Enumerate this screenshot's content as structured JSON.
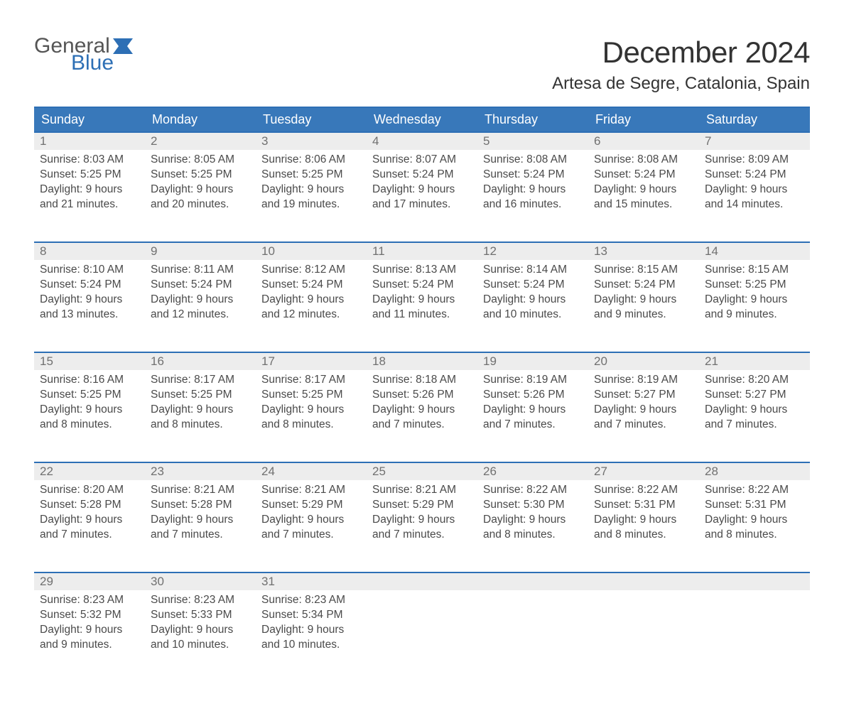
{
  "brand": {
    "word1": "General",
    "word2": "Blue",
    "text_color_general": "#555555",
    "text_color_blue": "#2d6fb5",
    "flag_color": "#2d6fb5"
  },
  "header": {
    "month_title": "December 2024",
    "location": "Artesa de Segre, Catalonia, Spain"
  },
  "colors": {
    "header_bg": "#3878ba",
    "header_border": "#2d6fb5",
    "daynum_bg": "#ededed",
    "daynum_text": "#707070",
    "body_text": "#4a4a4a",
    "page_bg": "#ffffff"
  },
  "weekdays": [
    "Sunday",
    "Monday",
    "Tuesday",
    "Wednesday",
    "Thursday",
    "Friday",
    "Saturday"
  ],
  "weeks": [
    [
      {
        "n": "1",
        "sr": "8:03 AM",
        "ss": "5:25 PM",
        "dl1": "Daylight: 9 hours",
        "dl2": "and 21 minutes."
      },
      {
        "n": "2",
        "sr": "8:05 AM",
        "ss": "5:25 PM",
        "dl1": "Daylight: 9 hours",
        "dl2": "and 20 minutes."
      },
      {
        "n": "3",
        "sr": "8:06 AM",
        "ss": "5:25 PM",
        "dl1": "Daylight: 9 hours",
        "dl2": "and 19 minutes."
      },
      {
        "n": "4",
        "sr": "8:07 AM",
        "ss": "5:24 PM",
        "dl1": "Daylight: 9 hours",
        "dl2": "and 17 minutes."
      },
      {
        "n": "5",
        "sr": "8:08 AM",
        "ss": "5:24 PM",
        "dl1": "Daylight: 9 hours",
        "dl2": "and 16 minutes."
      },
      {
        "n": "6",
        "sr": "8:08 AM",
        "ss": "5:24 PM",
        "dl1": "Daylight: 9 hours",
        "dl2": "and 15 minutes."
      },
      {
        "n": "7",
        "sr": "8:09 AM",
        "ss": "5:24 PM",
        "dl1": "Daylight: 9 hours",
        "dl2": "and 14 minutes."
      }
    ],
    [
      {
        "n": "8",
        "sr": "8:10 AM",
        "ss": "5:24 PM",
        "dl1": "Daylight: 9 hours",
        "dl2": "and 13 minutes."
      },
      {
        "n": "9",
        "sr": "8:11 AM",
        "ss": "5:24 PM",
        "dl1": "Daylight: 9 hours",
        "dl2": "and 12 minutes."
      },
      {
        "n": "10",
        "sr": "8:12 AM",
        "ss": "5:24 PM",
        "dl1": "Daylight: 9 hours",
        "dl2": "and 12 minutes."
      },
      {
        "n": "11",
        "sr": "8:13 AM",
        "ss": "5:24 PM",
        "dl1": "Daylight: 9 hours",
        "dl2": "and 11 minutes."
      },
      {
        "n": "12",
        "sr": "8:14 AM",
        "ss": "5:24 PM",
        "dl1": "Daylight: 9 hours",
        "dl2": "and 10 minutes."
      },
      {
        "n": "13",
        "sr": "8:15 AM",
        "ss": "5:24 PM",
        "dl1": "Daylight: 9 hours",
        "dl2": "and 9 minutes."
      },
      {
        "n": "14",
        "sr": "8:15 AM",
        "ss": "5:25 PM",
        "dl1": "Daylight: 9 hours",
        "dl2": "and 9 minutes."
      }
    ],
    [
      {
        "n": "15",
        "sr": "8:16 AM",
        "ss": "5:25 PM",
        "dl1": "Daylight: 9 hours",
        "dl2": "and 8 minutes."
      },
      {
        "n": "16",
        "sr": "8:17 AM",
        "ss": "5:25 PM",
        "dl1": "Daylight: 9 hours",
        "dl2": "and 8 minutes."
      },
      {
        "n": "17",
        "sr": "8:17 AM",
        "ss": "5:25 PM",
        "dl1": "Daylight: 9 hours",
        "dl2": "and 8 minutes."
      },
      {
        "n": "18",
        "sr": "8:18 AM",
        "ss": "5:26 PM",
        "dl1": "Daylight: 9 hours",
        "dl2": "and 7 minutes."
      },
      {
        "n": "19",
        "sr": "8:19 AM",
        "ss": "5:26 PM",
        "dl1": "Daylight: 9 hours",
        "dl2": "and 7 minutes."
      },
      {
        "n": "20",
        "sr": "8:19 AM",
        "ss": "5:27 PM",
        "dl1": "Daylight: 9 hours",
        "dl2": "and 7 minutes."
      },
      {
        "n": "21",
        "sr": "8:20 AM",
        "ss": "5:27 PM",
        "dl1": "Daylight: 9 hours",
        "dl2": "and 7 minutes."
      }
    ],
    [
      {
        "n": "22",
        "sr": "8:20 AM",
        "ss": "5:28 PM",
        "dl1": "Daylight: 9 hours",
        "dl2": "and 7 minutes."
      },
      {
        "n": "23",
        "sr": "8:21 AM",
        "ss": "5:28 PM",
        "dl1": "Daylight: 9 hours",
        "dl2": "and 7 minutes."
      },
      {
        "n": "24",
        "sr": "8:21 AM",
        "ss": "5:29 PM",
        "dl1": "Daylight: 9 hours",
        "dl2": "and 7 minutes."
      },
      {
        "n": "25",
        "sr": "8:21 AM",
        "ss": "5:29 PM",
        "dl1": "Daylight: 9 hours",
        "dl2": "and 7 minutes."
      },
      {
        "n": "26",
        "sr": "8:22 AM",
        "ss": "5:30 PM",
        "dl1": "Daylight: 9 hours",
        "dl2": "and 8 minutes."
      },
      {
        "n": "27",
        "sr": "8:22 AM",
        "ss": "5:31 PM",
        "dl1": "Daylight: 9 hours",
        "dl2": "and 8 minutes."
      },
      {
        "n": "28",
        "sr": "8:22 AM",
        "ss": "5:31 PM",
        "dl1": "Daylight: 9 hours",
        "dl2": "and 8 minutes."
      }
    ],
    [
      {
        "n": "29",
        "sr": "8:23 AM",
        "ss": "5:32 PM",
        "dl1": "Daylight: 9 hours",
        "dl2": "and 9 minutes."
      },
      {
        "n": "30",
        "sr": "8:23 AM",
        "ss": "5:33 PM",
        "dl1": "Daylight: 9 hours",
        "dl2": "and 10 minutes."
      },
      {
        "n": "31",
        "sr": "8:23 AM",
        "ss": "5:34 PM",
        "dl1": "Daylight: 9 hours",
        "dl2": "and 10 minutes."
      },
      null,
      null,
      null,
      null
    ]
  ],
  "labels": {
    "sunrise_prefix": "Sunrise: ",
    "sunset_prefix": "Sunset: "
  }
}
